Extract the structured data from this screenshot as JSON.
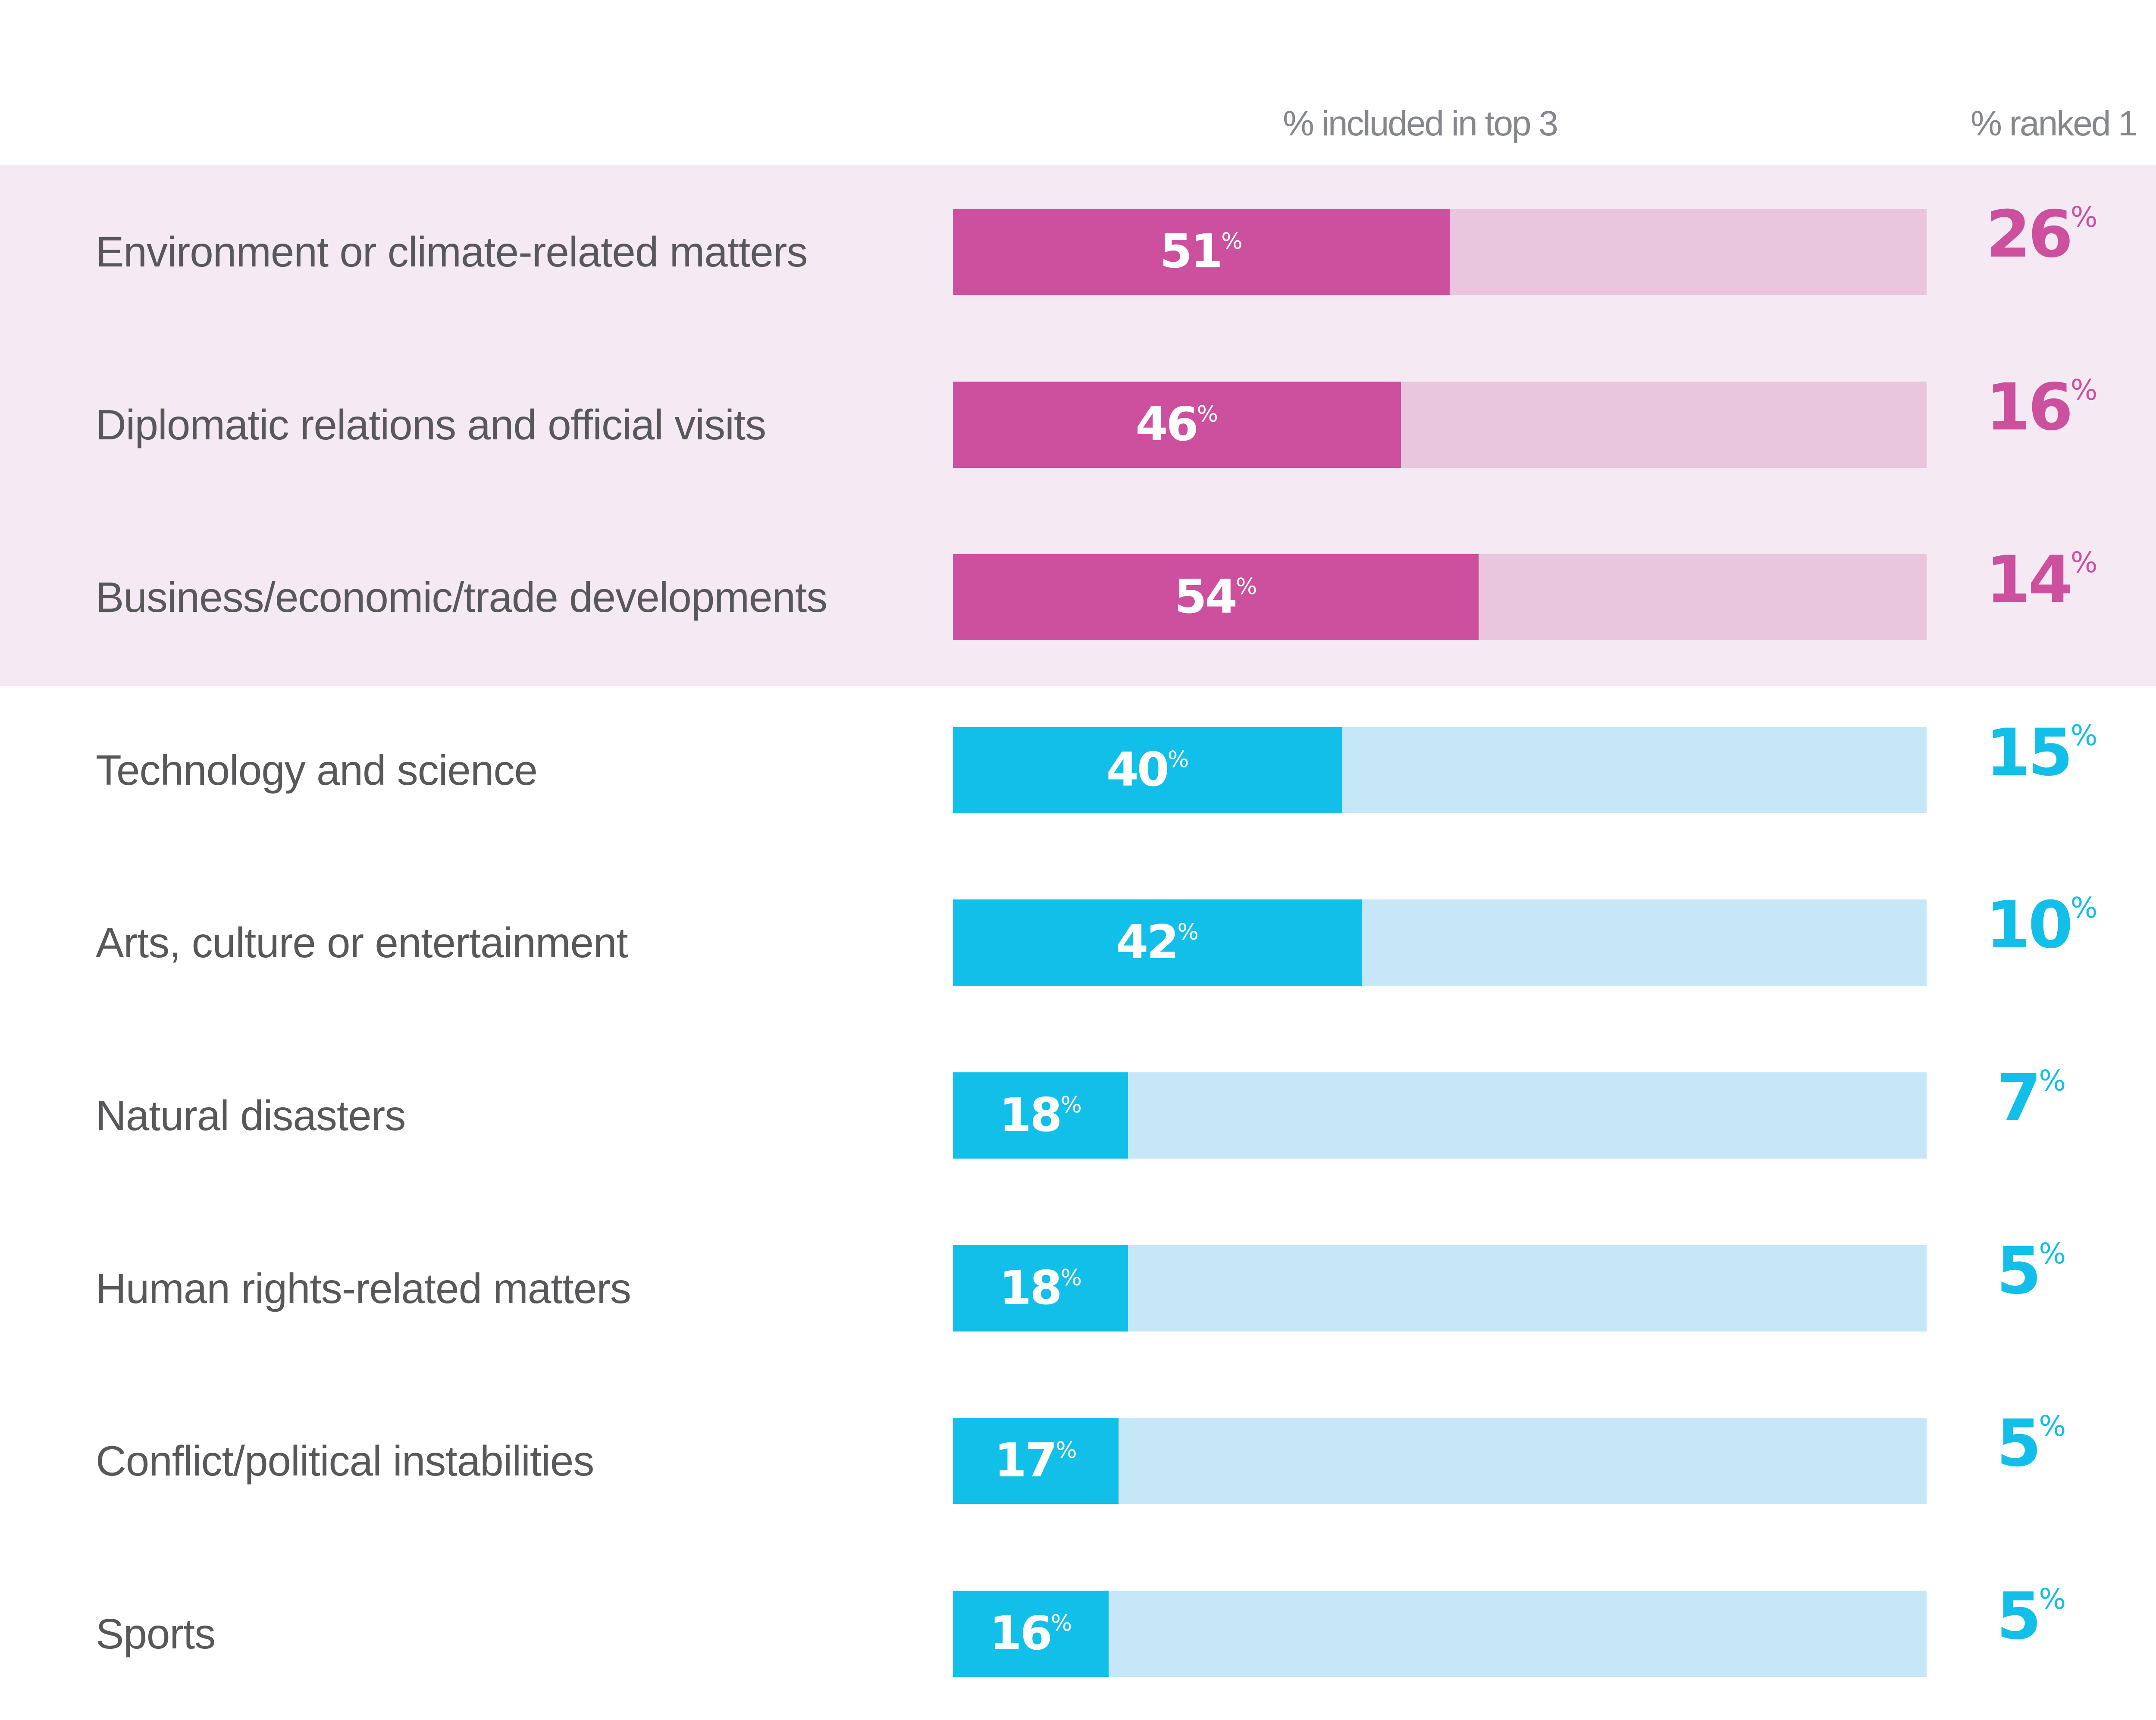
{
  "header": {
    "top3_label": "% included in top 3",
    "ranked1_label": "% ranked 1"
  },
  "colors": {
    "highlight_band": "#f5eaf3",
    "pink_fill": "#cc509e",
    "pink_track": "#e9c5de",
    "blue_fill": "#12bfe8",
    "blue_track": "#c6e7f7",
    "label_text": "#58585b",
    "header_text": "#85878c"
  },
  "chart_data": {
    "type": "bar",
    "orientation": "horizontal",
    "title": "",
    "xlabel": "",
    "ylabel": "",
    "xlim": [
      0,
      100
    ],
    "grid": false,
    "legend": "none",
    "categories": [
      "Environment or climate-related matters",
      "Diplomatic relations and official visits",
      "Business/economic/trade developments",
      "Technology and science",
      "Arts, culture or entertainment",
      "Natural disasters",
      "Human rights-related matters",
      "Conflict/political instabilities",
      "Sports"
    ],
    "series": [
      {
        "name": "% included in top 3",
        "values": [
          51,
          46,
          54,
          40,
          42,
          18,
          18,
          17,
          16
        ]
      },
      {
        "name": "% ranked 1",
        "values": [
          26,
          16,
          14,
          15,
          10,
          7,
          5,
          5,
          5
        ]
      }
    ],
    "highlighted": [
      true,
      true,
      true,
      false,
      false,
      false,
      false,
      false,
      false
    ],
    "value_suffix": "%"
  }
}
